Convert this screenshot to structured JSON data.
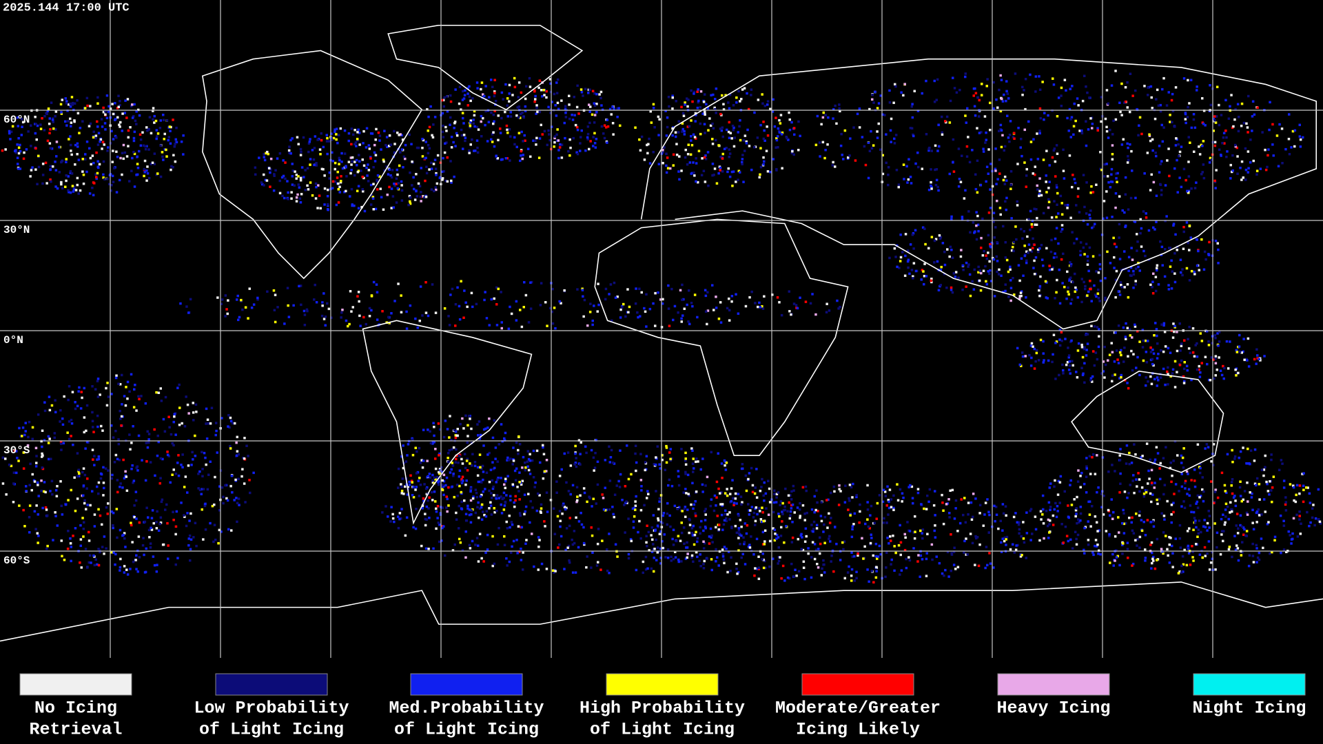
{
  "timestamp": "2025.144 17:00 UTC",
  "map": {
    "lat_labels": [
      "60°N",
      "30°N",
      "0°N",
      "30°S",
      "60°S"
    ]
  },
  "legend": [
    {
      "label": [
        "No Icing",
        "Retrieval"
      ],
      "color": "#f0f0f0"
    },
    {
      "label": [
        "Low Probability",
        "of Light Icing"
      ],
      "color": "#0c0c78"
    },
    {
      "label": [
        "Med.Probability",
        "of Light Icing"
      ],
      "color": "#1020f0"
    },
    {
      "label": [
        "High Probability",
        "of Light Icing"
      ],
      "color": "#ffff00"
    },
    {
      "label": [
        "Moderate/Greater",
        "Icing Likely"
      ],
      "color": "#ff0000"
    },
    {
      "label": [
        "Heavy Icing"
      ],
      "color": "#e8a8e8"
    },
    {
      "label": [
        "Night Icing"
      ],
      "color": "#00f0f0"
    }
  ]
}
